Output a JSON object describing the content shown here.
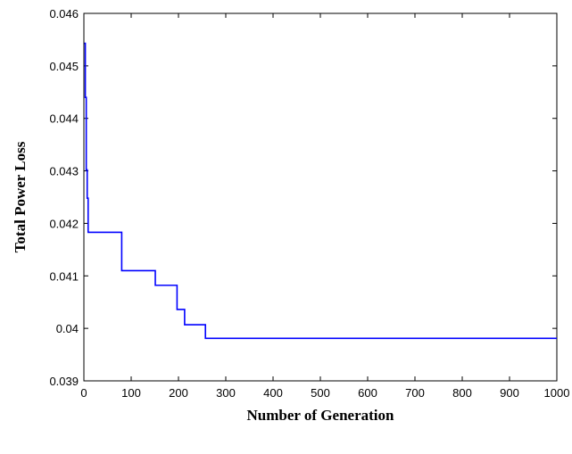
{
  "chart_data": {
    "type": "line",
    "xlabel": "Number of Generation",
    "ylabel": "Total Power Loss",
    "xlim": [
      0,
      1000
    ],
    "ylim": [
      0.039,
      0.046
    ],
    "x_ticks": [
      "0",
      "100",
      "200",
      "300",
      "400",
      "500",
      "600",
      "700",
      "800",
      "900",
      "1000"
    ],
    "y_ticks": [
      "0.039",
      "0.04",
      "0.041",
      "0.042",
      "0.043",
      "0.044",
      "0.045",
      "0.046"
    ],
    "grid": false,
    "series": [
      {
        "color": "#0000ff",
        "step": true,
        "x": [
          1,
          3,
          5,
          7,
          9,
          12,
          80,
          151,
          197,
          213,
          257,
          1000
        ],
        "y": [
          0.04543,
          0.0444,
          0.04302,
          0.04248,
          0.04183,
          0.04183,
          0.0411,
          0.04082,
          0.04036,
          0.04007,
          0.03981,
          0.03981
        ]
      }
    ]
  }
}
